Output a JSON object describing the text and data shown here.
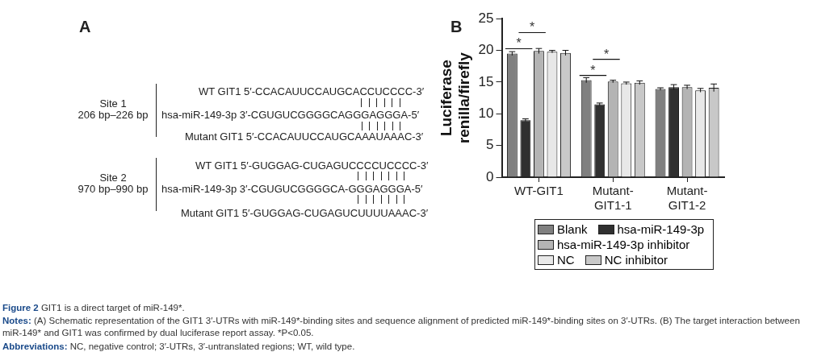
{
  "chart_data": {
    "type": "bar",
    "ylabel": "Luciferase renilla/firefly",
    "categories": [
      "WT-GIT1",
      "Mutant-GIT1-1",
      "Mutant-GIT1-2"
    ],
    "series": [
      {
        "name": "Blank",
        "color": "#808080",
        "values": [
          19.5,
          15.3,
          13.9
        ],
        "errors": [
          0.3,
          0.4,
          0.2
        ]
      },
      {
        "name": "hsa-miR-149-3p",
        "color": "#303030",
        "values": [
          9.0,
          11.5,
          14.2
        ],
        "errors": [
          0.2,
          0.2,
          0.4
        ]
      },
      {
        "name": "hsa-miR-149-3p inhibitor",
        "color": "#b4b4b4",
        "values": [
          19.9,
          15.1,
          14.2
        ],
        "errors": [
          0.4,
          0.2,
          0.3
        ]
      },
      {
        "name": "NC",
        "color": "#e8e8e8",
        "values": [
          19.8,
          14.8,
          13.7
        ],
        "errors": [
          0.2,
          0.2,
          0.3
        ]
      },
      {
        "name": "NC inhibitor",
        "color": "#c8c8c8",
        "values": [
          19.6,
          14.9,
          14.1
        ],
        "errors": [
          0.4,
          0.3,
          0.6
        ]
      }
    ],
    "ylim": [
      0,
      25
    ],
    "yticks": [
      0,
      5,
      10,
      15,
      20,
      25
    ],
    "grid": false,
    "legend": "bottom",
    "annotations": [
      "A",
      "Site 1",
      "206 bp–226 bp",
      "WT GIT1 5′-CCACAUUCCAUGCACCUCCCC-3′",
      "hsa-miR-149-3p 3′-CGUGUCGGGGCAGGGAGGGA-5′",
      "Mutant GIT1 5′-CCACAUUCCAUGCAAAUAAAC-3′",
      "Site 2",
      "970 bp–990 bp",
      "WT GIT1 5′-GUGGAG-CUGAGUCCCCUCCCC-3′",
      "hsa-miR-149-3p 3′-CGUGUCGGGGCA-GGGAGGGA-5′",
      "Mutant GIT1 5′-GUGGAG-CUGAGUCUUUUAAAC-3′",
      "B",
      "Figure 2 GIT1 is a direct target of miR-149*.",
      "Notes: (A) Schematic representation of the GIT1 3′-UTRs with miR-149*-binding sites and sequence alignment of predicted miR-149*-binding sites on 3′-UTRs. (B) The target interaction between miR-149* and GIT1 was confirmed by dual luciferase report assay. *P<0.05.",
      "Abbreviations: NC, negative control; 3′-UTRs, 3′-untranslated regions; WT, wild type.",
      "*",
      "*",
      "*",
      "*"
    ]
  }
}
